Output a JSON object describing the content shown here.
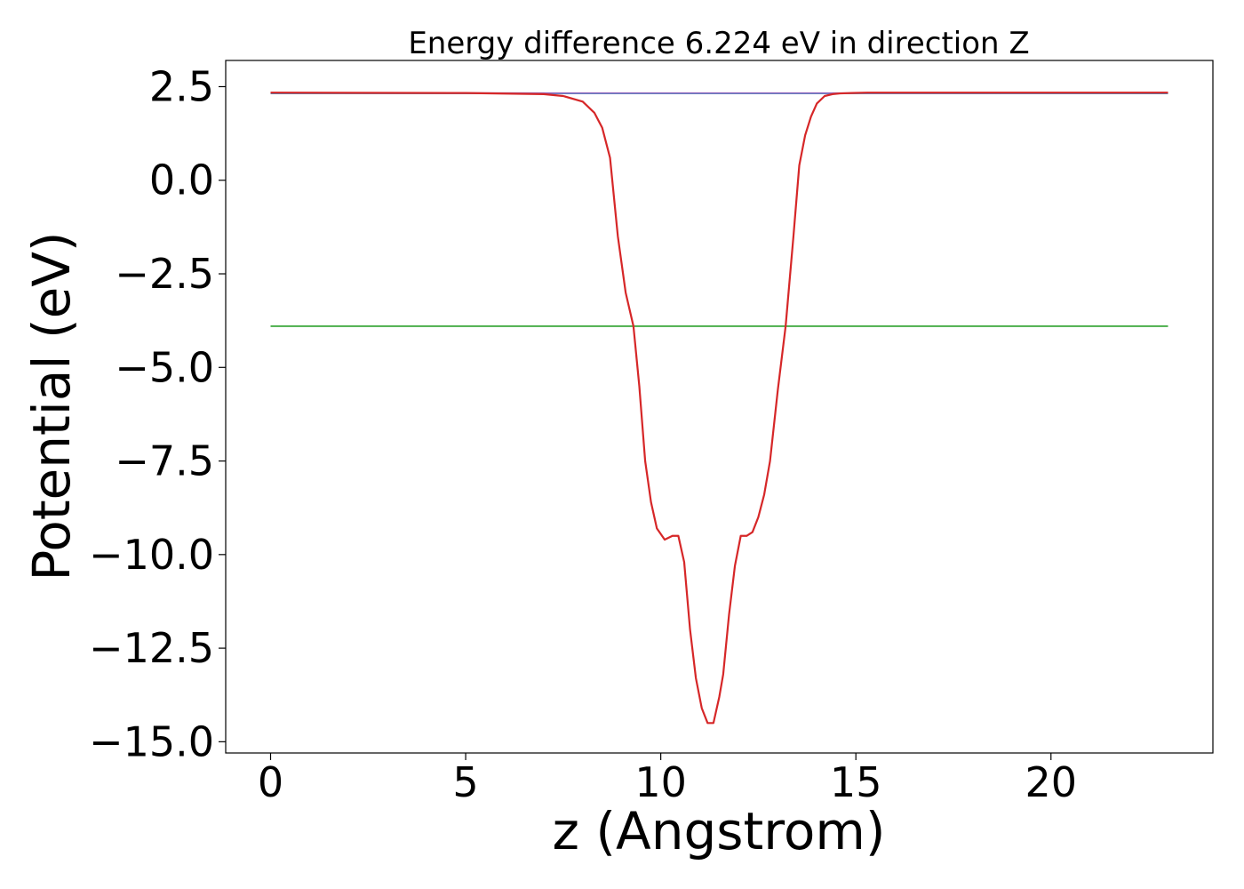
{
  "chart_data": {
    "type": "line",
    "title": "Energy difference 6.224 eV in direction Z",
    "xlabel": "z (Angstrom)",
    "ylabel": "Potential (eV)",
    "xlim": [
      -1.15,
      24.15
    ],
    "ylim": [
      -15.3,
      3.2
    ],
    "xticks": [
      0,
      5,
      10,
      15,
      20
    ],
    "xtick_labels": [
      "0",
      "5",
      "10",
      "15",
      "20"
    ],
    "yticks": [
      2.5,
      0.0,
      -2.5,
      -5.0,
      -7.5,
      -10.0,
      -12.5,
      -15.0
    ],
    "ytick_labels": [
      "2.5",
      "0.0",
      "−2.5",
      "−5.0",
      "−7.5",
      "−10.0",
      "−12.5",
      "−15.0"
    ],
    "grid": false,
    "series": [
      {
        "color": "#1f77b4",
        "x": [
          0,
          23
        ],
        "y": [
          2.32,
          2.32
        ]
      },
      {
        "color": "#2ca02c",
        "x": [
          0,
          23
        ],
        "y": [
          -3.9,
          -3.9
        ]
      },
      {
        "color": "#9467bd",
        "x": [
          0,
          7.0,
          16.2,
          23
        ],
        "y": [
          2.34,
          2.33,
          2.33,
          2.34
        ]
      },
      {
        "color": "#d62728",
        "x": [
          0,
          5.0,
          7.0,
          7.5,
          8.0,
          8.3,
          8.5,
          8.7,
          8.9,
          9.1,
          9.3,
          9.45,
          9.6,
          9.75,
          9.9,
          10.1,
          10.3,
          10.45,
          10.6,
          10.75,
          10.9,
          11.05,
          11.2,
          11.35,
          11.5,
          11.6,
          11.75,
          11.9,
          12.05,
          12.2,
          12.35,
          12.5,
          12.65,
          12.8,
          13.0,
          13.2,
          13.4,
          13.55,
          13.7,
          13.85,
          14.0,
          14.2,
          14.4,
          14.6,
          14.9,
          15.3,
          16.0,
          18.0,
          23.0
        ],
        "y": [
          2.34,
          2.33,
          2.3,
          2.25,
          2.1,
          1.8,
          1.4,
          0.6,
          -1.5,
          -3.0,
          -3.9,
          -5.5,
          -7.5,
          -8.6,
          -9.3,
          -9.6,
          -9.5,
          -9.5,
          -10.2,
          -12.0,
          -13.3,
          -14.1,
          -14.5,
          -14.5,
          -13.8,
          -13.2,
          -11.6,
          -10.3,
          -9.5,
          -9.5,
          -9.4,
          -9.0,
          -8.4,
          -7.5,
          -5.6,
          -3.9,
          -1.5,
          0.4,
          1.2,
          1.7,
          2.05,
          2.25,
          2.3,
          2.32,
          2.33,
          2.34,
          2.34,
          2.34,
          2.34
        ]
      }
    ]
  }
}
